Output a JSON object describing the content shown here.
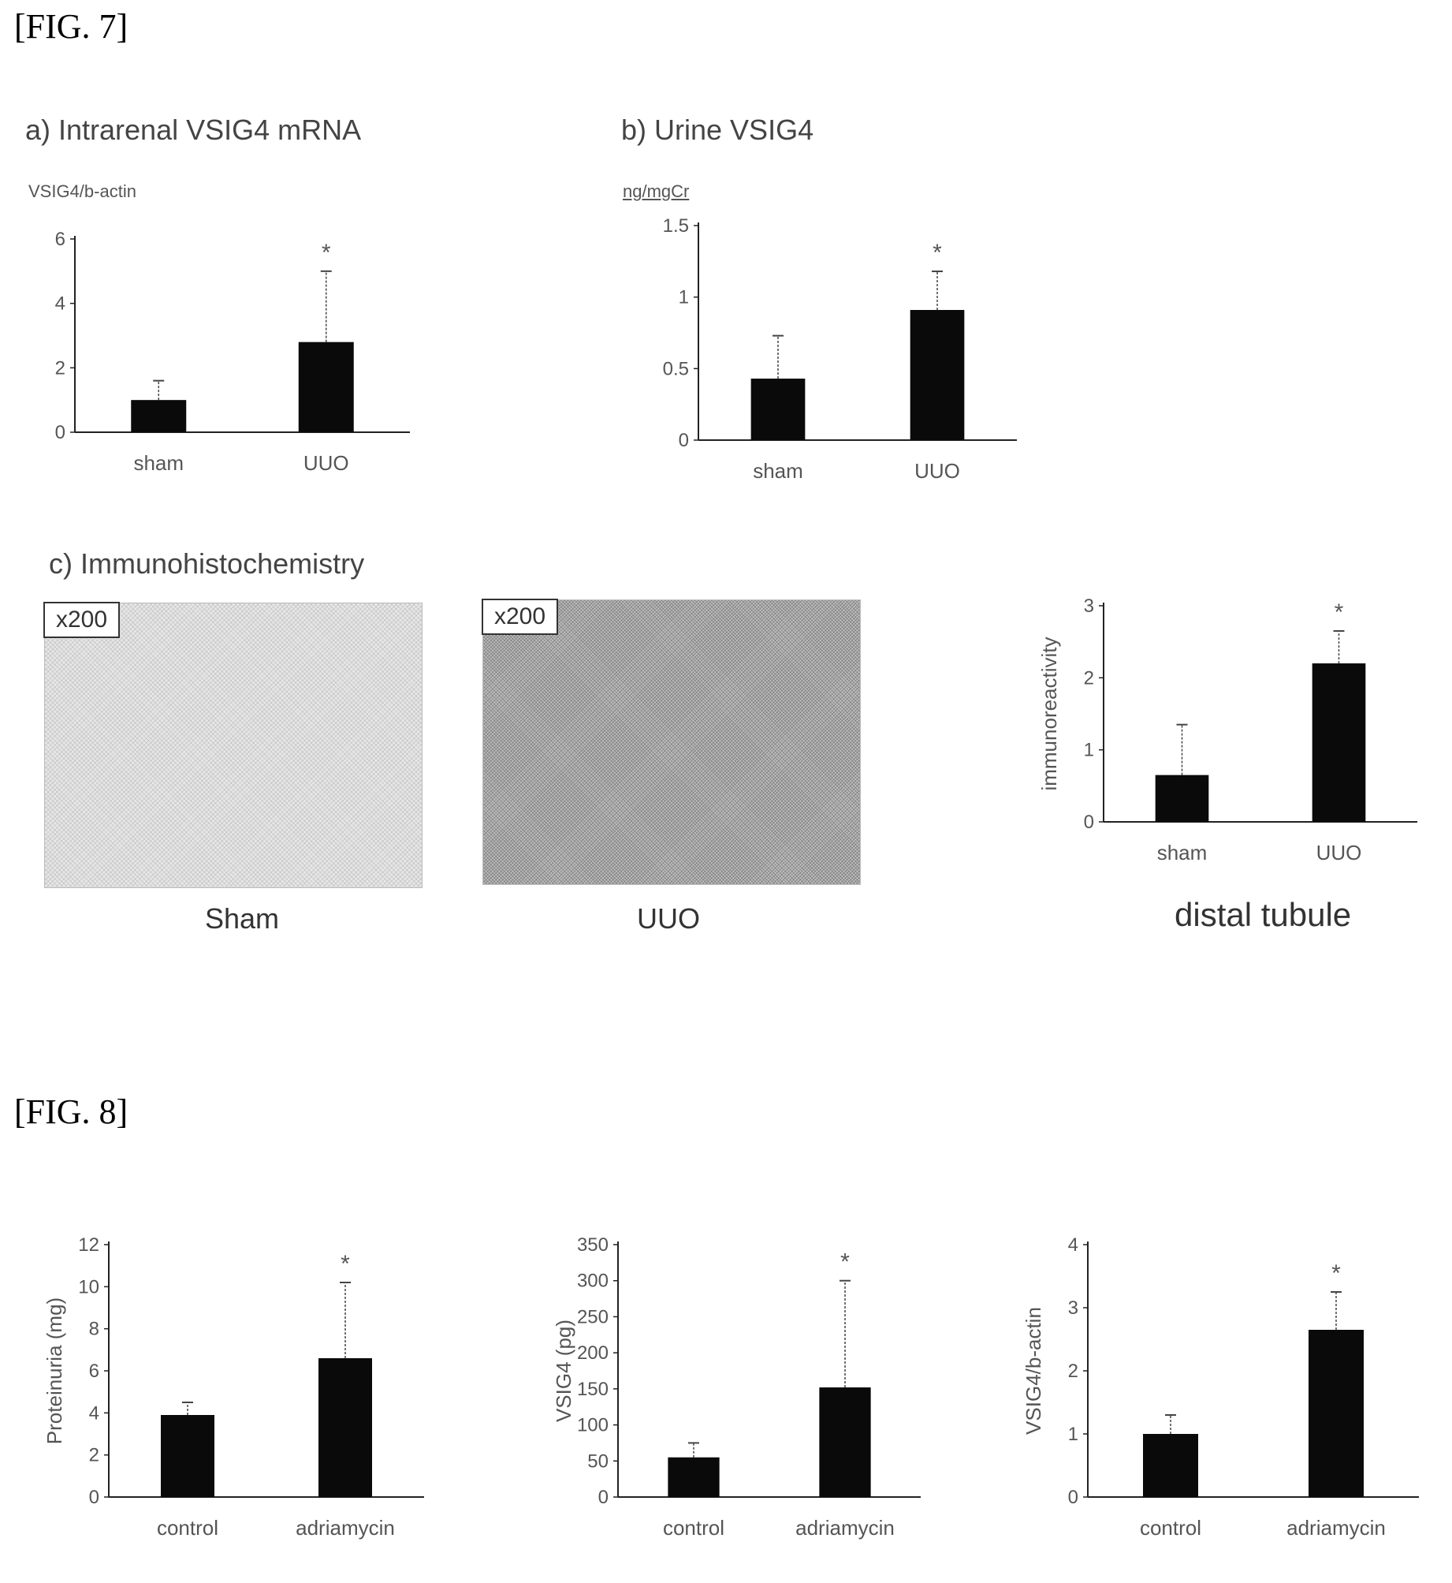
{
  "figure7": {
    "label": "[FIG. 7]",
    "panel_a": {
      "title": "a) Intrarenal VSIG4 mRNA",
      "unit": "VSIG4/b-actin"
    },
    "panel_b": {
      "title": "b) Urine VSIG4",
      "unit": "ng/mgCr"
    },
    "panel_c": {
      "title": "c) Immunohistochemistry",
      "images": [
        {
          "magnification": "x200",
          "caption": "Sham",
          "staining": "light"
        },
        {
          "magnification": "x200",
          "caption": "UUO",
          "staining": "dark"
        }
      ],
      "chart_caption": "distal tubule"
    }
  },
  "figure8": {
    "label": "[FIG. 8]"
  },
  "chart_data": [
    {
      "type": "bar",
      "categories": [
        "sham",
        "UUO"
      ],
      "values": [
        1.0,
        2.8
      ],
      "error": [
        0.6,
        2.2
      ],
      "significance": [
        "",
        "*"
      ],
      "yticks": [
        0,
        2,
        4,
        6
      ],
      "ytick_labels": [
        "0",
        "2",
        "4",
        "6"
      ],
      "ylim": [
        0,
        6
      ],
      "ylabel": "",
      "grid": false
    },
    {
      "type": "bar",
      "categories": [
        "sham",
        "UUO"
      ],
      "values": [
        0.43,
        0.91
      ],
      "error": [
        0.3,
        0.27
      ],
      "significance": [
        "",
        "*"
      ],
      "yticks": [
        0,
        0.5,
        1,
        1.5
      ],
      "ytick_labels": [
        "0",
        "0.5",
        "1",
        "1.5"
      ],
      "ylim": [
        0,
        1.5
      ],
      "ylabel": "",
      "grid": false
    },
    {
      "type": "bar",
      "categories": [
        "sham",
        "UUO"
      ],
      "values": [
        0.65,
        2.2
      ],
      "error": [
        0.7,
        0.45
      ],
      "significance": [
        "",
        "*"
      ],
      "yticks": [
        0,
        1,
        2,
        3
      ],
      "ytick_labels": [
        "0",
        "1",
        "2",
        "3"
      ],
      "ylim": [
        0,
        3
      ],
      "ylabel": "immunoreactivity",
      "grid": false
    },
    {
      "type": "bar",
      "categories": [
        "control",
        "adriamycin"
      ],
      "values": [
        3.9,
        6.6
      ],
      "error": [
        0.6,
        3.6
      ],
      "significance": [
        "",
        "*"
      ],
      "yticks": [
        0,
        2,
        4,
        6,
        8,
        10,
        12
      ],
      "ytick_labels": [
        "0",
        "2",
        "4",
        "6",
        "8",
        "10",
        "12"
      ],
      "ylim": [
        0,
        12
      ],
      "ylabel": "Proteinuria (mg)",
      "grid": false
    },
    {
      "type": "bar",
      "categories": [
        "control",
        "adriamycin"
      ],
      "values": [
        55,
        152
      ],
      "error": [
        20,
        148
      ],
      "significance": [
        "",
        "*"
      ],
      "yticks": [
        0,
        50,
        100,
        150,
        200,
        250,
        300,
        350
      ],
      "ytick_labels": [
        "0",
        "50",
        "100",
        "150",
        "200",
        "250",
        "300",
        "350"
      ],
      "ylim": [
        0,
        350
      ],
      "ylabel": "VSIG4 (pg)",
      "grid": false
    },
    {
      "type": "bar",
      "categories": [
        "control",
        "adriamycin"
      ],
      "values": [
        1.0,
        2.65
      ],
      "error": [
        0.3,
        0.6
      ],
      "significance": [
        "",
        "*"
      ],
      "yticks": [
        0,
        1,
        2,
        3,
        4
      ],
      "ytick_labels": [
        "0",
        "1",
        "2",
        "3",
        "4"
      ],
      "ylim": [
        0,
        4
      ],
      "ylabel": "VSIG4/b-actin",
      "grid": false
    }
  ]
}
